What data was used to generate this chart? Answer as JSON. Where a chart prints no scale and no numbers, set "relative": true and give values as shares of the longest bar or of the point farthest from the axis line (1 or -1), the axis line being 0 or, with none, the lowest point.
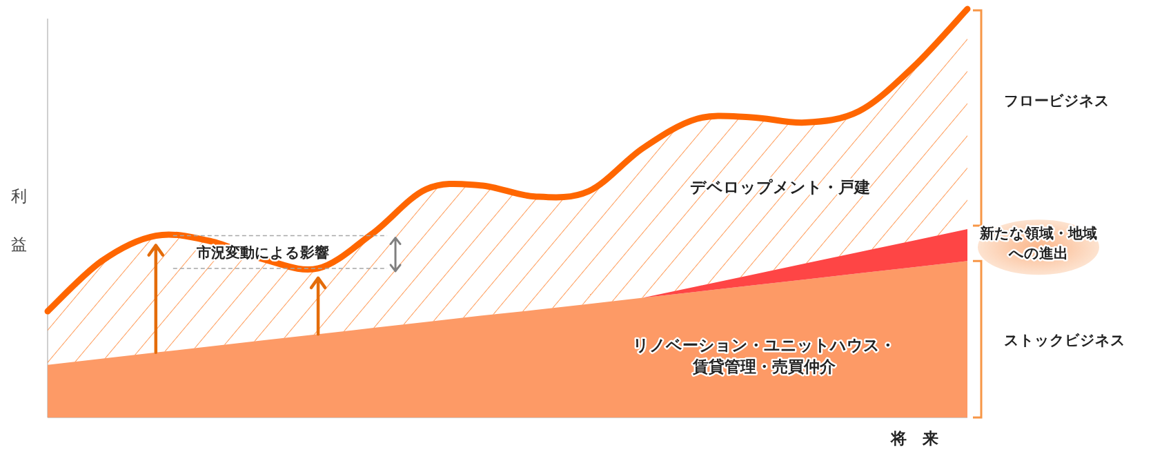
{
  "chart_data": {
    "type": "area",
    "relative": true,
    "stacked": true,
    "ylabel": "利益",
    "xlabel": "将　来",
    "categories": [
      null,
      null,
      null,
      null,
      null,
      null,
      null,
      null,
      null,
      null,
      null,
      null,
      null,
      null,
      null,
      null,
      null,
      null
    ],
    "series": [
      {
        "name": "リノベーション・ユニットハウス・賃貸管理・売買仲介",
        "color": "#fd9a66",
        "values": [
          0.129,
          0.144,
          0.159,
          0.174,
          0.189,
          0.204,
          0.219,
          0.234,
          0.249,
          0.263,
          0.278,
          0.293,
          0.308,
          0.323,
          0.338,
          0.353,
          0.368,
          0.383
        ]
      },
      {
        "name": "新たな領域・地域への進出",
        "color": "#fe4545",
        "values": [
          0,
          0,
          0,
          0,
          0,
          0,
          0,
          0,
          0,
          0,
          0,
          0,
          0.013,
          0.026,
          0.039,
          0.052,
          0.065,
          0.078
        ]
      },
      {
        "name": "デベロップメント・戸建",
        "color": "#ff6600",
        "values": [
          0.131,
          0.239,
          0.286,
          0.258,
          0.198,
          0.161,
          0.231,
          0.325,
          0.319,
          0.278,
          0.276,
          0.366,
          0.41,
          0.386,
          0.345,
          0.345,
          0.425,
          0.539
        ]
      }
    ],
    "annotations": [
      "フロービジネス",
      "ストックビジネス",
      "市況変動による影響"
    ]
  }
}
